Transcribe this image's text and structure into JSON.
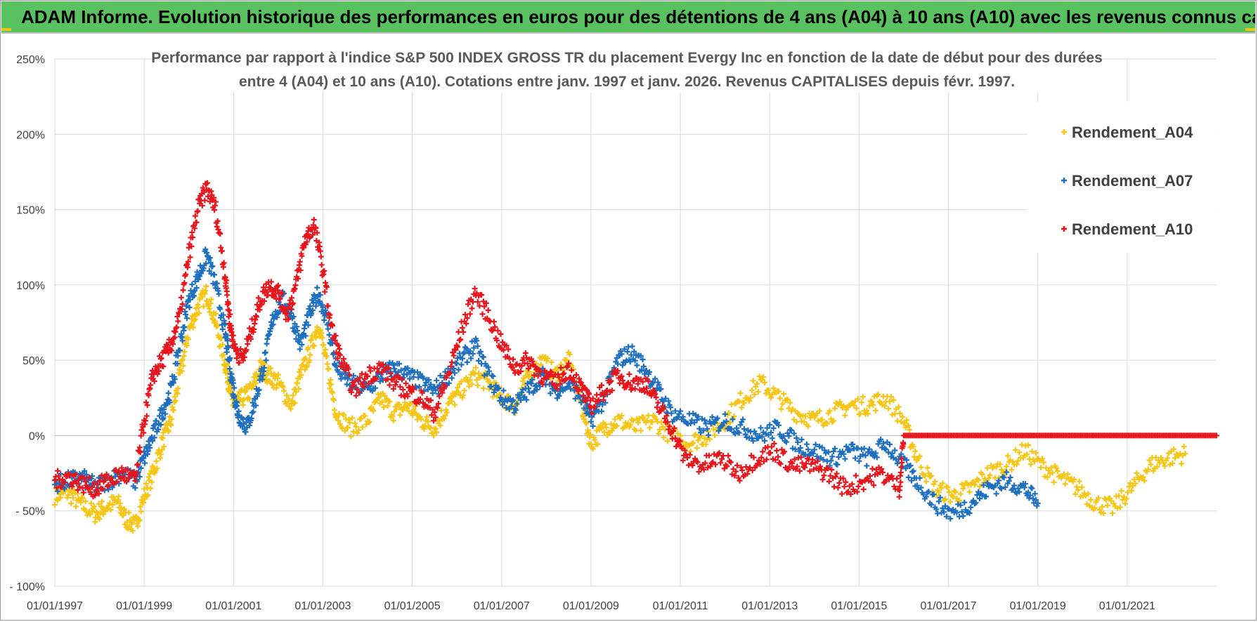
{
  "header": {
    "banner_title": "ADAM Informe. Evolution historique des performances en euros pour des détentions de 4 ans (A04) à 10 ans (A10) avec les revenus connus capitalisés"
  },
  "chart_data": {
    "type": "scatter",
    "title_line1": "Performance par rapport à l'indice S&P 500 INDEX GROSS TR  du placement Evergy Inc en fonction de la date de début pour des durées",
    "title_line2": "entre 4 (A04) et 10 ans (A10).  Cotations entre janv. 1997 et janv. 2026. Revenus CAPITALISES depuis févr. 1997.",
    "x_range": [
      1997.0,
      2023.0
    ],
    "x_tick_labels": [
      "01/01/1997",
      "01/01/1999",
      "01/01/2001",
      "01/01/2003",
      "01/01/2005",
      "01/01/2007",
      "01/01/2009",
      "01/01/2011",
      "01/01/2013",
      "01/01/2015",
      "01/01/2017",
      "01/01/2019",
      "01/01/2021"
    ],
    "x_tick_values": [
      1997,
      1999,
      2001,
      2003,
      2005,
      2007,
      2009,
      2011,
      2013,
      2015,
      2017,
      2019,
      2021
    ],
    "ylim": [
      -100,
      250
    ],
    "y_tick_values": [
      -100,
      -50,
      0,
      50,
      100,
      150,
      200,
      250
    ],
    "y_tick_labels": [
      "- 100%",
      "- 50%",
      "0%",
      "50%",
      "100%",
      "150%",
      "200%",
      "250%"
    ],
    "marker": "+",
    "legend_position": "top-right",
    "series": [
      {
        "name": "Rendement_A04",
        "color": "#f5c518",
        "points": [
          [
            1997.0,
            -40
          ],
          [
            1997.3,
            -38
          ],
          [
            1997.6,
            -46
          ],
          [
            1997.9,
            -52
          ],
          [
            1998.1,
            -48
          ],
          [
            1998.4,
            -44
          ],
          [
            1998.6,
            -56
          ],
          [
            1998.8,
            -60
          ],
          [
            1999.0,
            -40
          ],
          [
            1999.2,
            -25
          ],
          [
            1999.4,
            -5
          ],
          [
            1999.6,
            10
          ],
          [
            1999.8,
            40
          ],
          [
            2000.0,
            70
          ],
          [
            2000.2,
            85
          ],
          [
            2000.4,
            95
          ],
          [
            2000.6,
            75
          ],
          [
            2000.8,
            50
          ],
          [
            2000.9,
            35
          ],
          [
            2001.0,
            20
          ],
          [
            2001.2,
            25
          ],
          [
            2001.4,
            30
          ],
          [
            2001.6,
            45
          ],
          [
            2001.8,
            40
          ],
          [
            2002.0,
            35
          ],
          [
            2002.3,
            20
          ],
          [
            2002.5,
            40
          ],
          [
            2002.7,
            55
          ],
          [
            2002.9,
            75
          ],
          [
            2003.1,
            45
          ],
          [
            2003.3,
            15
          ],
          [
            2003.6,
            5
          ],
          [
            2004.0,
            10
          ],
          [
            2004.3,
            25
          ],
          [
            2004.6,
            15
          ],
          [
            2004.9,
            20
          ],
          [
            2005.2,
            10
          ],
          [
            2005.5,
            5
          ],
          [
            2005.8,
            20
          ],
          [
            2006.1,
            30
          ],
          [
            2006.4,
            40
          ],
          [
            2006.7,
            35
          ],
          [
            2007.0,
            25
          ],
          [
            2007.3,
            20
          ],
          [
            2007.6,
            40
          ],
          [
            2007.9,
            50
          ],
          [
            2008.2,
            40
          ],
          [
            2008.5,
            50
          ],
          [
            2008.8,
            20
          ],
          [
            2009.0,
            -5
          ],
          [
            2009.3,
            5
          ],
          [
            2009.6,
            10
          ],
          [
            2010.0,
            5
          ],
          [
            2010.4,
            10
          ],
          [
            2010.8,
            0
          ],
          [
            2011.2,
            -5
          ],
          [
            2011.6,
            0
          ],
          [
            2012.0,
            10
          ],
          [
            2012.4,
            25
          ],
          [
            2012.8,
            35
          ],
          [
            2013.2,
            25
          ],
          [
            2013.6,
            15
          ],
          [
            2014.0,
            10
          ],
          [
            2014.4,
            15
          ],
          [
            2014.8,
            20
          ],
          [
            2015.2,
            20
          ],
          [
            2015.6,
            25
          ],
          [
            2016.0,
            10
          ],
          [
            2016.3,
            -15
          ],
          [
            2016.7,
            -35
          ],
          [
            2017.1,
            -40
          ],
          [
            2017.5,
            -35
          ],
          [
            2017.9,
            -25
          ],
          [
            2018.3,
            -20
          ],
          [
            2018.7,
            -10
          ],
          [
            2019.1,
            -20
          ],
          [
            2019.5,
            -28
          ],
          [
            2019.9,
            -35
          ],
          [
            2020.3,
            -45
          ],
          [
            2020.7,
            -48
          ],
          [
            2021.1,
            -35
          ],
          [
            2021.5,
            -20
          ],
          [
            2021.9,
            -15
          ],
          [
            2022.3,
            -12
          ]
        ]
      },
      {
        "name": "Rendement_A07",
        "color": "#1f6fbf",
        "points": [
          [
            1997.0,
            -32
          ],
          [
            1997.3,
            -30
          ],
          [
            1997.6,
            -28
          ],
          [
            1997.9,
            -34
          ],
          [
            1998.2,
            -30
          ],
          [
            1998.5,
            -25
          ],
          [
            1998.8,
            -30
          ],
          [
            1999.0,
            -15
          ],
          [
            1999.2,
            0
          ],
          [
            1999.4,
            15
          ],
          [
            1999.6,
            30
          ],
          [
            1999.8,
            60
          ],
          [
            2000.0,
            90
          ],
          [
            2000.2,
            105
          ],
          [
            2000.4,
            120
          ],
          [
            2000.6,
            100
          ],
          [
            2000.8,
            70
          ],
          [
            2000.9,
            50
          ],
          [
            2001.0,
            30
          ],
          [
            2001.1,
            15
          ],
          [
            2001.3,
            5
          ],
          [
            2001.5,
            25
          ],
          [
            2001.7,
            50
          ],
          [
            2001.9,
            80
          ],
          [
            2002.1,
            90
          ],
          [
            2002.3,
            80
          ],
          [
            2002.5,
            60
          ],
          [
            2002.7,
            80
          ],
          [
            2002.9,
            95
          ],
          [
            2003.1,
            75
          ],
          [
            2003.3,
            45
          ],
          [
            2003.6,
            35
          ],
          [
            2004.0,
            30
          ],
          [
            2004.3,
            40
          ],
          [
            2004.6,
            45
          ],
          [
            2004.9,
            40
          ],
          [
            2005.2,
            35
          ],
          [
            2005.5,
            30
          ],
          [
            2005.8,
            40
          ],
          [
            2006.1,
            50
          ],
          [
            2006.4,
            60
          ],
          [
            2006.7,
            40
          ],
          [
            2007.0,
            25
          ],
          [
            2007.3,
            20
          ],
          [
            2007.6,
            30
          ],
          [
            2007.9,
            40
          ],
          [
            2008.2,
            30
          ],
          [
            2008.5,
            35
          ],
          [
            2008.8,
            25
          ],
          [
            2009.0,
            10
          ],
          [
            2009.3,
            25
          ],
          [
            2009.6,
            50
          ],
          [
            2009.9,
            55
          ],
          [
            2010.2,
            45
          ],
          [
            2010.5,
            30
          ],
          [
            2010.8,
            15
          ],
          [
            2011.2,
            10
          ],
          [
            2011.6,
            5
          ],
          [
            2012.0,
            10
          ],
          [
            2012.4,
            5
          ],
          [
            2012.8,
            0
          ],
          [
            2013.2,
            5
          ],
          [
            2013.6,
            -5
          ],
          [
            2014.0,
            -10
          ],
          [
            2014.4,
            -15
          ],
          [
            2014.8,
            -10
          ],
          [
            2015.2,
            -15
          ],
          [
            2015.6,
            -5
          ],
          [
            2016.0,
            -20
          ],
          [
            2016.3,
            -30
          ],
          [
            2016.7,
            -45
          ],
          [
            2017.1,
            -52
          ],
          [
            2017.5,
            -45
          ],
          [
            2017.9,
            -35
          ],
          [
            2018.3,
            -30
          ],
          [
            2018.7,
            -35
          ],
          [
            2019.0,
            -45
          ]
        ]
      },
      {
        "name": "Rendement_A10",
        "color": "#e8141c",
        "points": [
          [
            1997.0,
            -30
          ],
          [
            1997.3,
            -27
          ],
          [
            1997.6,
            -32
          ],
          [
            1997.9,
            -35
          ],
          [
            1998.2,
            -30
          ],
          [
            1998.5,
            -25
          ],
          [
            1998.8,
            -30
          ],
          [
            1999.0,
            10
          ],
          [
            1999.2,
            40
          ],
          [
            1999.4,
            50
          ],
          [
            1999.6,
            60
          ],
          [
            1999.8,
            80
          ],
          [
            2000.0,
            120
          ],
          [
            2000.2,
            150
          ],
          [
            2000.4,
            165
          ],
          [
            2000.6,
            150
          ],
          [
            2000.8,
            110
          ],
          [
            2000.9,
            80
          ],
          [
            2001.0,
            60
          ],
          [
            2001.2,
            50
          ],
          [
            2001.4,
            70
          ],
          [
            2001.6,
            90
          ],
          [
            2001.8,
            100
          ],
          [
            2002.0,
            95
          ],
          [
            2002.2,
            80
          ],
          [
            2002.4,
            100
          ],
          [
            2002.6,
            130
          ],
          [
            2002.8,
            140
          ],
          [
            2003.0,
            110
          ],
          [
            2003.2,
            70
          ],
          [
            2003.4,
            50
          ],
          [
            2003.7,
            30
          ],
          [
            2004.0,
            40
          ],
          [
            2004.3,
            45
          ],
          [
            2004.6,
            35
          ],
          [
            2004.9,
            30
          ],
          [
            2005.2,
            25
          ],
          [
            2005.5,
            15
          ],
          [
            2005.8,
            40
          ],
          [
            2006.1,
            70
          ],
          [
            2006.4,
            95
          ],
          [
            2006.7,
            80
          ],
          [
            2007.0,
            60
          ],
          [
            2007.3,
            45
          ],
          [
            2007.6,
            50
          ],
          [
            2007.9,
            40
          ],
          [
            2008.2,
            35
          ],
          [
            2008.5,
            45
          ],
          [
            2008.8,
            30
          ],
          [
            2009.0,
            20
          ],
          [
            2009.3,
            30
          ],
          [
            2009.6,
            40
          ],
          [
            2009.9,
            35
          ],
          [
            2010.2,
            35
          ],
          [
            2010.5,
            20
          ],
          [
            2010.8,
            5
          ],
          [
            2011.1,
            -15
          ],
          [
            2011.5,
            -20
          ],
          [
            2011.9,
            -15
          ],
          [
            2012.3,
            -25
          ],
          [
            2012.7,
            -15
          ],
          [
            2013.1,
            -10
          ],
          [
            2013.5,
            -20
          ],
          [
            2013.9,
            -20
          ],
          [
            2014.3,
            -25
          ],
          [
            2014.7,
            -35
          ],
          [
            2015.1,
            -30
          ],
          [
            2015.5,
            -25
          ],
          [
            2015.9,
            -35
          ],
          [
            2016.0,
            0
          ],
          [
            2016.5,
            0
          ],
          [
            2017.0,
            0
          ],
          [
            2017.5,
            0
          ],
          [
            2018.0,
            0
          ],
          [
            2018.5,
            0
          ],
          [
            2019.0,
            0
          ],
          [
            2019.5,
            0
          ],
          [
            2020.0,
            0
          ],
          [
            2020.5,
            0
          ],
          [
            2021.0,
            0
          ],
          [
            2021.5,
            0
          ],
          [
            2022.0,
            0
          ],
          [
            2022.5,
            0
          ],
          [
            2023.0,
            0
          ]
        ]
      }
    ]
  }
}
